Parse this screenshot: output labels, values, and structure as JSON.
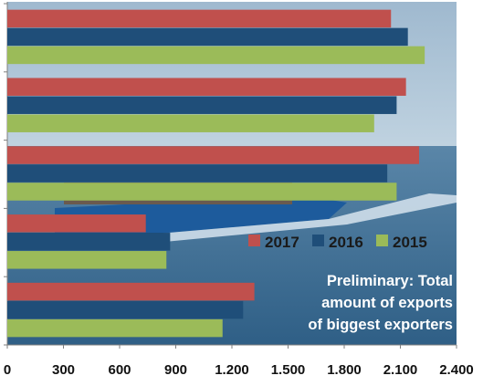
{
  "chart_data": {
    "type": "bar",
    "orientation": "horizontal",
    "categories": [
      "",
      "",
      "",
      "",
      ""
    ],
    "x_ticks": [
      "0",
      "300",
      "600",
      "900",
      "1.200",
      "1.500",
      "1.800",
      "2.100",
      "2.400"
    ],
    "xlim": [
      0,
      2400
    ],
    "grid": false,
    "legend_position": "right",
    "series": [
      {
        "name": "2017",
        "color": "#c0504d",
        "values": [
          2050,
          2130,
          2200,
          740,
          1320
        ]
      },
      {
        "name": "2016",
        "color": "#1f4e79",
        "values": [
          2140,
          2080,
          2030,
          870,
          1260
        ]
      },
      {
        "name": "2015",
        "color": "#9bbb59",
        "values": [
          2230,
          1960,
          2080,
          850,
          1150
        ]
      }
    ],
    "annotation": [
      "Preliminary: Total",
      "amount of exports",
      "of biggest exporters"
    ]
  },
  "background": {
    "sky": "#a9c2d6",
    "sea": "#3e6f95",
    "hull": "#1d5b9c"
  }
}
